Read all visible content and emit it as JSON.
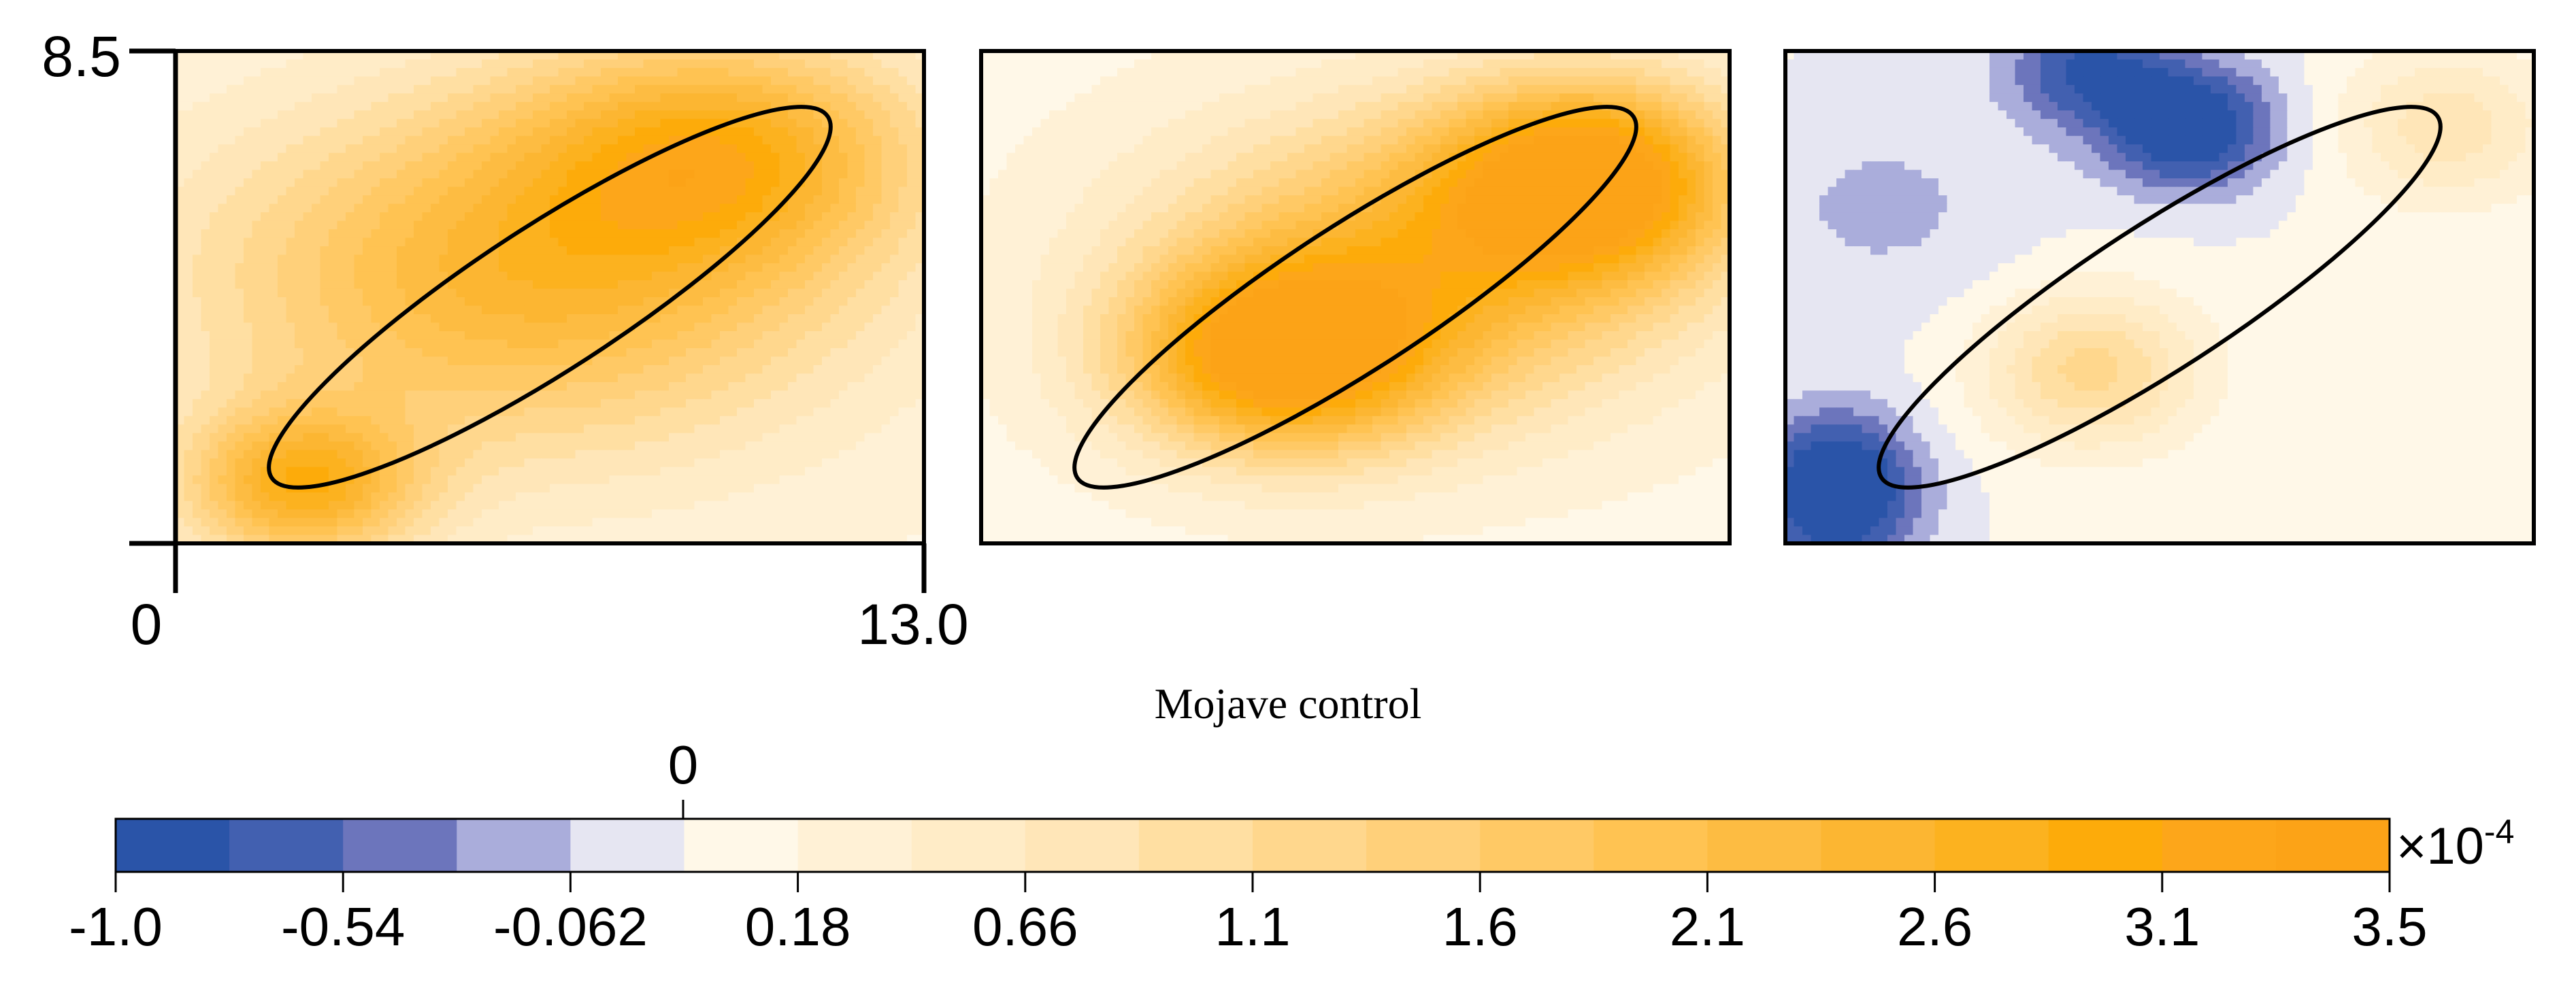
{
  "chart_data": {
    "type": "heatmap",
    "title": "Mojave control",
    "panels": [
      {
        "name": "panel-1",
        "x_ticks": [
          "0",
          "13.0"
        ],
        "y_ticks": [
          "8.5"
        ],
        "xlim": [
          0,
          13.0
        ],
        "ylim": [
          0,
          8.5
        ],
        "hotspots": [
          {
            "x": 6.0,
            "y": 4.6,
            "value": 2.1,
            "sx": 5.5,
            "sy": 3.0
          },
          {
            "x": 9.5,
            "y": 6.8,
            "value": 2.0,
            "sx": 3.5,
            "sy": 2.0
          },
          {
            "x": 2.2,
            "y": 1.0,
            "value": 2.3,
            "sx": 2.0,
            "sy": 1.3
          }
        ],
        "baseline": 0.3,
        "ellipse": {
          "cx": 6.5,
          "cy": 4.25,
          "rx": 7.2,
          "ry": 2.0,
          "angle_deg": 33
        }
      },
      {
        "name": "panel-2",
        "xlim": [
          0,
          13.0
        ],
        "ylim": [
          0,
          8.5
        ],
        "hotspots": [
          {
            "x": 5.2,
            "y": 3.2,
            "value": 2.9,
            "sx": 2.6,
            "sy": 1.6
          },
          {
            "x": 10.6,
            "y": 6.3,
            "value": 3.0,
            "sx": 2.6,
            "sy": 1.7
          },
          {
            "x": 7.6,
            "y": 4.8,
            "value": 2.0,
            "sx": 4.5,
            "sy": 2.6
          }
        ],
        "baseline": 0.25,
        "ellipse": {
          "cx": 6.5,
          "cy": 4.25,
          "rx": 7.2,
          "ry": 2.0,
          "angle_deg": 33
        }
      },
      {
        "name": "panel-3",
        "xlim": [
          0,
          13.0
        ],
        "ylim": [
          0,
          8.5
        ],
        "hotspots": [
          {
            "x": 7.0,
            "y": 7.2,
            "value": -1.3,
            "sx": 1.5,
            "sy": 1.1
          },
          {
            "x": 5.2,
            "y": 8.2,
            "value": -0.9,
            "sx": 1.4,
            "sy": 1.0
          },
          {
            "x": 0.9,
            "y": 0.9,
            "value": -1.5,
            "sx": 1.4,
            "sy": 1.3
          },
          {
            "x": 5.3,
            "y": 3.0,
            "value": 1.2,
            "sx": 1.8,
            "sy": 1.3
          },
          {
            "x": 11.5,
            "y": 7.2,
            "value": 0.8,
            "sx": 1.8,
            "sy": 1.3
          },
          {
            "x": 1.7,
            "y": 5.8,
            "value": -0.3,
            "sx": 2.5,
            "sy": 1.8
          }
        ],
        "baseline": 0.15,
        "ellipse": {
          "cx": 6.5,
          "cy": 4.25,
          "rx": 7.2,
          "ry": 2.0,
          "angle_deg": 33
        }
      }
    ],
    "colorbar": {
      "min": -1.0,
      "max": 3.5,
      "zero_label": "0",
      "multiplier": "×10",
      "exponent": "-4",
      "tick_labels": [
        "-1.0",
        "-0.54",
        "-0.062",
        "0.18",
        "0.66",
        "1.1",
        "1.6",
        "2.1",
        "2.6",
        "3.1",
        "3.5"
      ],
      "colors": [
        "#2a54a8",
        "#4260b0",
        "#6c75bc",
        "#aaaddb",
        "#e6e6f2",
        "#fff8e8",
        "#fff1d6",
        "#ffecc7",
        "#ffe6b8",
        "#ffdfa2",
        "#ffd78d",
        "#ffd07a",
        "#ffc965",
        "#ffc352",
        "#fdbc42",
        "#fcb632",
        "#fcb21f",
        "#fdab0a",
        "#fda61a",
        "#fca317"
      ]
    }
  }
}
